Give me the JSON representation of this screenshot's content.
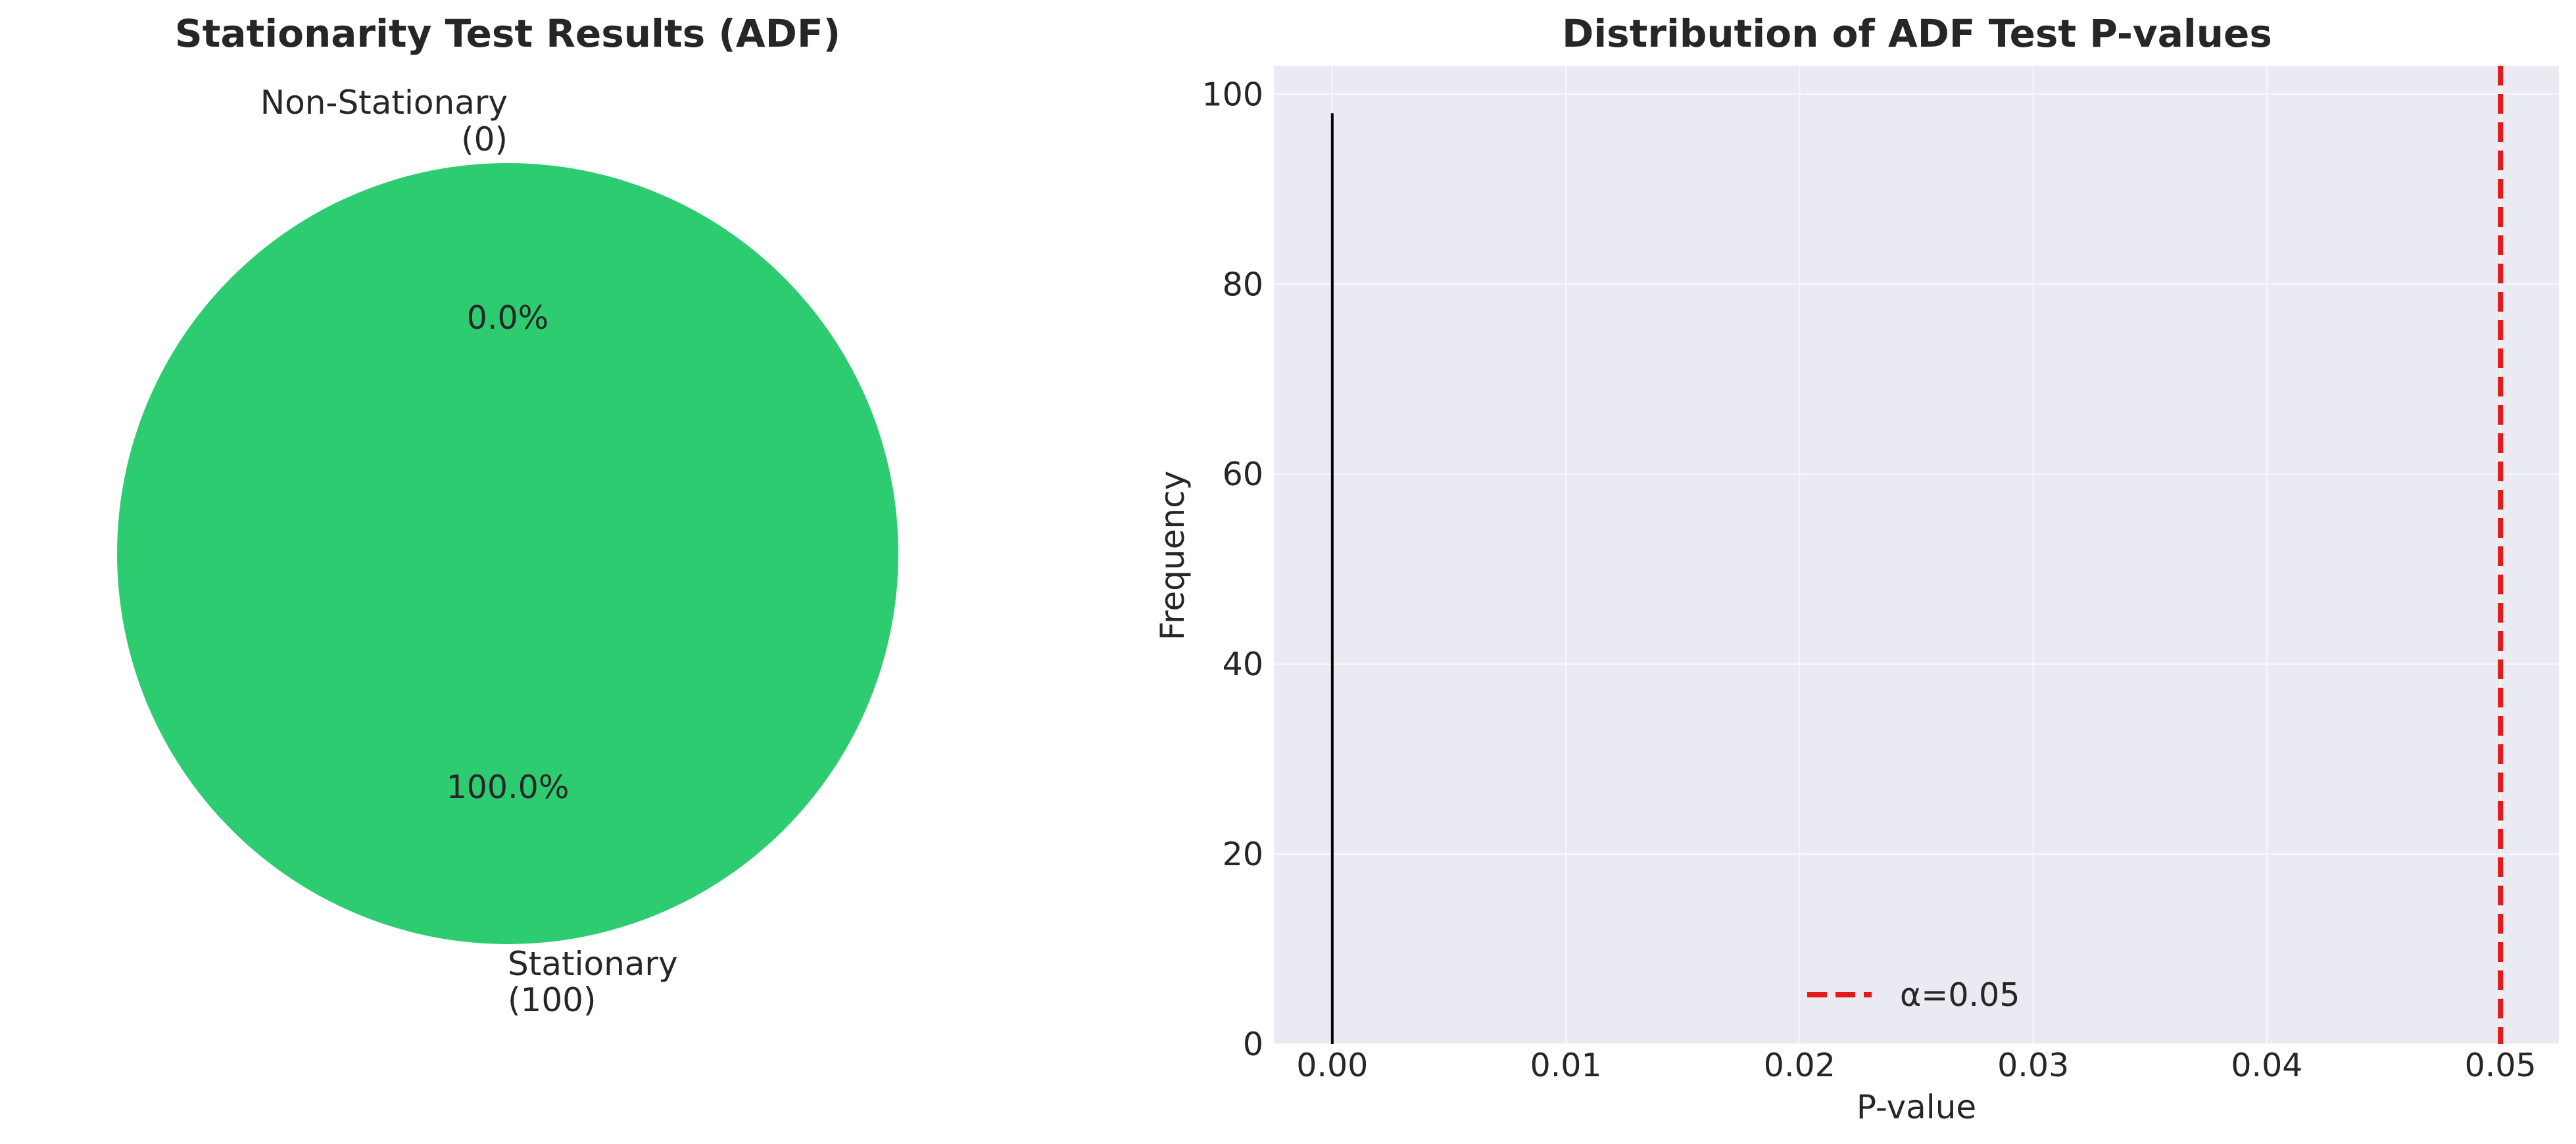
{
  "chart_data": [
    {
      "type": "pie",
      "title": "Stationarity Test Results (ADF)",
      "slices": [
        {
          "label_line1": "Stationary",
          "label_line2": "(100)",
          "value": 100,
          "pct_label": "100.0%",
          "color": "#2ecc71"
        },
        {
          "label_line1": "Non-Stationary",
          "label_line2": "(0)",
          "value": 0,
          "pct_label": "0.0%",
          "color": "#e74c3c"
        }
      ],
      "start_angle_deg": 90
    },
    {
      "type": "histogram",
      "title": "Distribution of ADF Test P-values",
      "xlabel": "P-value",
      "ylabel": "Frequency",
      "xlim": [
        -0.0025,
        0.0525
      ],
      "ylim": [
        0,
        103
      ],
      "x_ticks": [
        0.0,
        0.01,
        0.02,
        0.03,
        0.04,
        0.05
      ],
      "x_tick_labels": [
        "0.00",
        "0.01",
        "0.02",
        "0.03",
        "0.04",
        "0.05"
      ],
      "y_ticks": [
        0,
        20,
        40,
        60,
        80,
        100
      ],
      "y_tick_labels": [
        "0",
        "20",
        "40",
        "60",
        "80",
        "100"
      ],
      "bars": [
        {
          "x": 0.0,
          "count": 98
        }
      ],
      "threshold": {
        "value": 0.05,
        "label": "α=0.05",
        "color": "#e31a1c",
        "style": "dashed"
      },
      "legend_position": "lower center",
      "grid": true,
      "background": "#eaeaf2"
    }
  ]
}
